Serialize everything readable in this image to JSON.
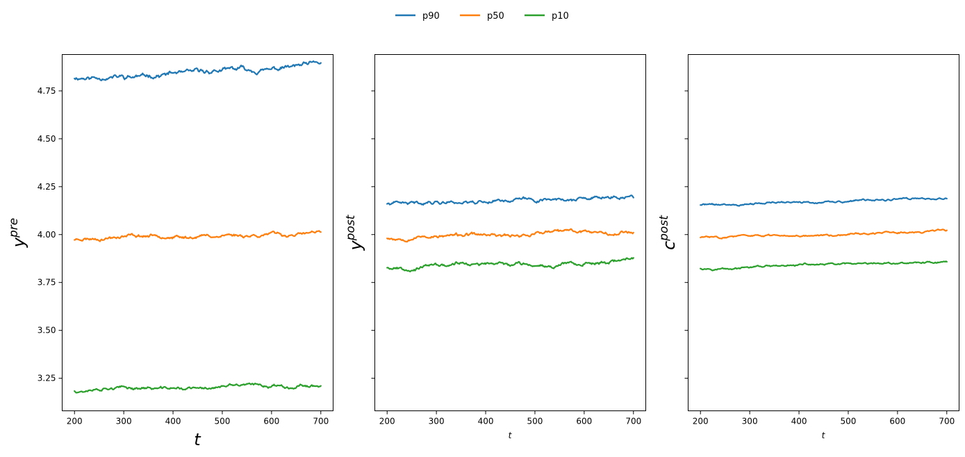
{
  "chart_data": {
    "type": "line",
    "shared_y": true,
    "ylim": [
      3.08,
      4.94
    ],
    "yticks": [
      3.25,
      3.5,
      3.75,
      4.0,
      4.25,
      4.5,
      4.75
    ],
    "ytick_labels": [
      "3.25",
      "3.50",
      "3.75",
      "4.00",
      "4.25",
      "4.50",
      "4.75"
    ],
    "xlim": [
      175,
      725
    ],
    "xticks": [
      200,
      300,
      400,
      500,
      600,
      700
    ],
    "xtick_labels": [
      "200",
      "300",
      "400",
      "500",
      "600",
      "700"
    ],
    "x_start": 200,
    "x_end": 700,
    "legend": {
      "placement": "top-center",
      "entries": [
        {
          "name": "p90",
          "color": "#1f77b4"
        },
        {
          "name": "p50",
          "color": "#ff7f0e"
        },
        {
          "name": "p10",
          "color": "#2ca02c"
        }
      ]
    },
    "panels": [
      {
        "xlabel": "t",
        "ylabel_base": "y",
        "ylabel_sup": "pre",
        "series": [
          {
            "name": "p90",
            "color": "#1f77b4",
            "base": 4.82,
            "end": 4.88,
            "amp": 0.015,
            "seed": 11
          },
          {
            "name": "p50",
            "color": "#ff7f0e",
            "base": 3.975,
            "end": 4.01,
            "amp": 0.011,
            "seed": 23
          },
          {
            "name": "p10",
            "color": "#2ca02c",
            "base": 3.185,
            "end": 3.215,
            "amp": 0.01,
            "seed": 37
          }
        ]
      },
      {
        "xlabel": "t",
        "ylabel_base": "y",
        "ylabel_sup": "post",
        "series": [
          {
            "name": "p90",
            "color": "#1f77b4",
            "base": 4.16,
            "end": 4.195,
            "amp": 0.011,
            "seed": 41
          },
          {
            "name": "p50",
            "color": "#ff7f0e",
            "base": 3.985,
            "end": 4.02,
            "amp": 0.011,
            "seed": 53
          },
          {
            "name": "p10",
            "color": "#2ca02c",
            "base": 3.83,
            "end": 3.865,
            "amp": 0.011,
            "seed": 67
          }
        ]
      },
      {
        "xlabel": "t",
        "ylabel_base": "c",
        "ylabel_sup": "post",
        "series": [
          {
            "name": "p90",
            "color": "#1f77b4",
            "base": 4.155,
            "end": 4.19,
            "amp": 0.006,
            "seed": 71
          },
          {
            "name": "p50",
            "color": "#ff7f0e",
            "base": 3.985,
            "end": 4.02,
            "amp": 0.006,
            "seed": 83
          },
          {
            "name": "p10",
            "color": "#2ca02c",
            "base": 3.825,
            "end": 3.86,
            "amp": 0.006,
            "seed": 97
          }
        ]
      }
    ]
  }
}
